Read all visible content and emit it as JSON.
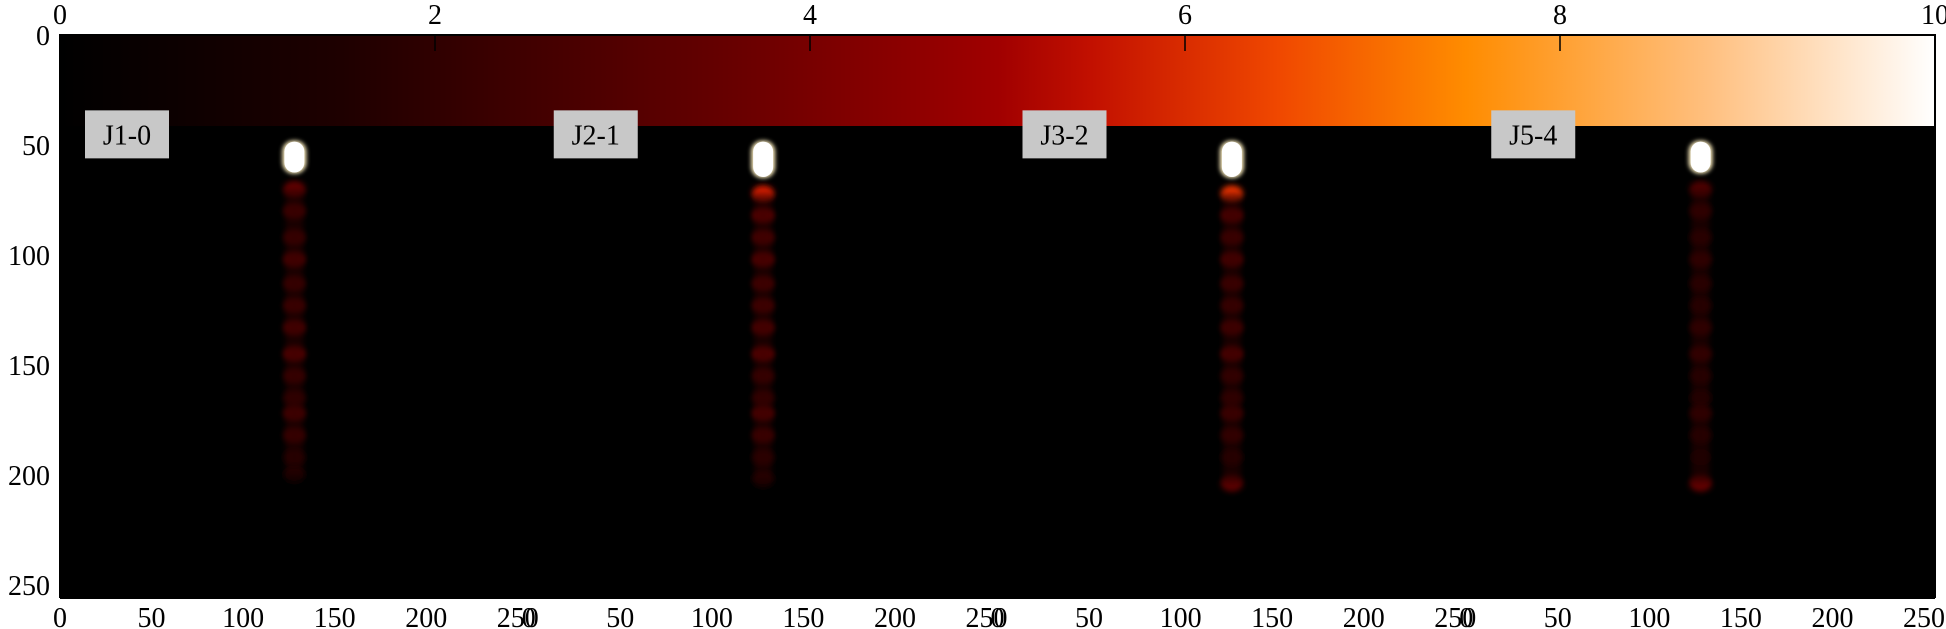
{
  "chart_data": {
    "type": "heatmap",
    "colormap": "gist_heat",
    "colorbar": {
      "orientation": "horizontal",
      "range": [
        0,
        10
      ],
      "ticks": [
        0,
        2,
        4,
        6,
        8,
        10
      ],
      "tick_labels": [
        "0",
        "2",
        "4",
        "6",
        "8",
        "10"
      ]
    },
    "y_axis": {
      "range": [
        0,
        256
      ],
      "inverted": true,
      "ticks": [
        0,
        50,
        100,
        150,
        200,
        250
      ],
      "tick_labels": [
        "0",
        "50",
        "100",
        "150",
        "200",
        "250"
      ]
    },
    "x_tick_labels": [
      "0",
      "50",
      "100",
      "150",
      "200",
      "250"
    ],
    "x_ticks": [
      0,
      50,
      100,
      150,
      200,
      250
    ],
    "x_range": [
      0,
      256
    ],
    "panels": [
      {
        "label": "J1-0",
        "streak_x": 128,
        "head": {
          "y_start": 48,
          "y_end": 63,
          "intensity": 10
        },
        "tail": [
          {
            "y": 70,
            "value": 2.5
          },
          {
            "y": 80,
            "value": 1.8
          },
          {
            "y": 92,
            "value": 1.6
          },
          {
            "y": 102,
            "value": 2.2
          },
          {
            "y": 113,
            "value": 1.6
          },
          {
            "y": 123,
            "value": 1.8
          },
          {
            "y": 133,
            "value": 2.2
          },
          {
            "y": 145,
            "value": 2.6
          },
          {
            "y": 155,
            "value": 1.6
          },
          {
            "y": 165,
            "value": 1.2
          },
          {
            "y": 172,
            "value": 2.0
          },
          {
            "y": 182,
            "value": 1.6
          },
          {
            "y": 192,
            "value": 0.8
          },
          {
            "y": 200,
            "value": 0.5
          }
        ]
      },
      {
        "label": "J2-1",
        "streak_x": 128,
        "head": {
          "y_start": 48,
          "y_end": 65,
          "intensity": 10
        },
        "tail": [
          {
            "y": 72,
            "value": 5.5
          },
          {
            "y": 82,
            "value": 2.8
          },
          {
            "y": 92,
            "value": 2.2
          },
          {
            "y": 102,
            "value": 2.6
          },
          {
            "y": 113,
            "value": 2.0
          },
          {
            "y": 123,
            "value": 2.0
          },
          {
            "y": 133,
            "value": 2.4
          },
          {
            "y": 145,
            "value": 2.8
          },
          {
            "y": 155,
            "value": 1.6
          },
          {
            "y": 165,
            "value": 1.4
          },
          {
            "y": 172,
            "value": 2.4
          },
          {
            "y": 182,
            "value": 1.8
          },
          {
            "y": 192,
            "value": 1.0
          },
          {
            "y": 202,
            "value": 0.8
          }
        ]
      },
      {
        "label": "J3-2",
        "streak_x": 128,
        "head": {
          "y_start": 48,
          "y_end": 65,
          "intensity": 10
        },
        "tail": [
          {
            "y": 72,
            "value": 6.0
          },
          {
            "y": 82,
            "value": 2.4
          },
          {
            "y": 92,
            "value": 1.8
          },
          {
            "y": 102,
            "value": 2.2
          },
          {
            "y": 113,
            "value": 1.8
          },
          {
            "y": 123,
            "value": 1.6
          },
          {
            "y": 133,
            "value": 2.0
          },
          {
            "y": 145,
            "value": 2.4
          },
          {
            "y": 155,
            "value": 1.4
          },
          {
            "y": 165,
            "value": 1.2
          },
          {
            "y": 172,
            "value": 1.8
          },
          {
            "y": 182,
            "value": 1.4
          },
          {
            "y": 192,
            "value": 0.8
          },
          {
            "y": 204,
            "value": 2.4
          }
        ]
      },
      {
        "label": "J5-4",
        "streak_x": 128,
        "head": {
          "y_start": 48,
          "y_end": 63,
          "intensity": 10
        },
        "tail": [
          {
            "y": 70,
            "value": 2.0
          },
          {
            "y": 80,
            "value": 1.2
          },
          {
            "y": 92,
            "value": 0.9
          },
          {
            "y": 102,
            "value": 1.2
          },
          {
            "y": 113,
            "value": 0.9
          },
          {
            "y": 123,
            "value": 0.8
          },
          {
            "y": 133,
            "value": 1.2
          },
          {
            "y": 145,
            "value": 1.4
          },
          {
            "y": 155,
            "value": 0.8
          },
          {
            "y": 165,
            "value": 0.6
          },
          {
            "y": 172,
            "value": 1.2
          },
          {
            "y": 182,
            "value": 0.8
          },
          {
            "y": 192,
            "value": 0.4
          },
          {
            "y": 204,
            "value": 2.6
          }
        ]
      }
    ]
  }
}
